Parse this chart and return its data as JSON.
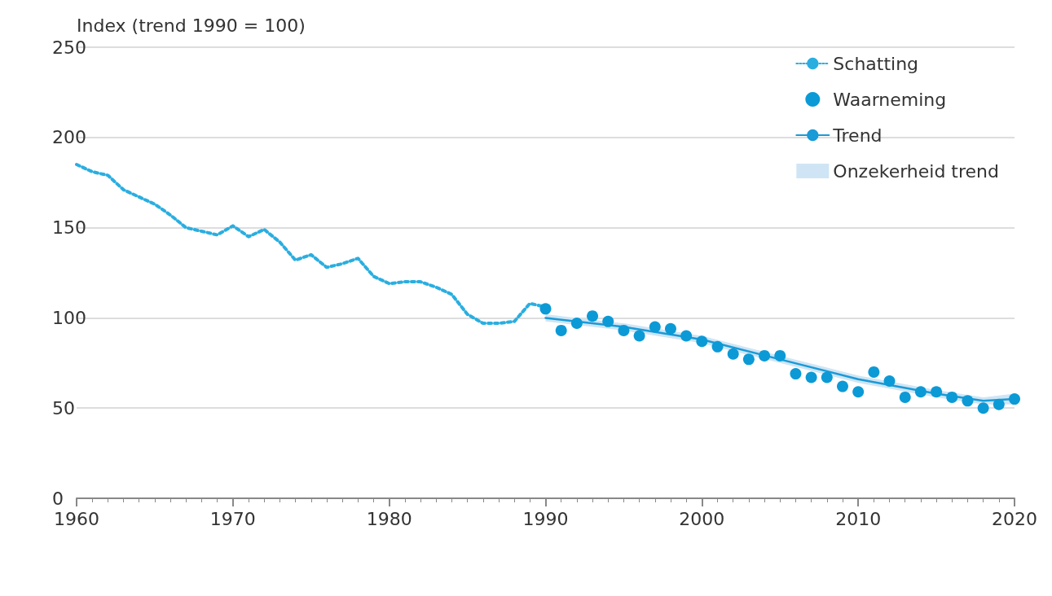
{
  "chart_data": {
    "type": "line",
    "ylabel": "Index (trend 1990 = 100)",
    "xlim": [
      1960,
      2020
    ],
    "xticks": [
      1960,
      1970,
      1980,
      1990,
      2000,
      2010,
      2020
    ],
    "ylim": [
      0,
      250
    ],
    "yticks": [
      0,
      50,
      100,
      150,
      200,
      250
    ],
    "grid": "y",
    "legend": "top right",
    "series": [
      {
        "name": "Schatting",
        "type": "line",
        "line_style": "dotted",
        "marker": "none",
        "color": "#2aaee0",
        "x": [
          1960,
          1961,
          1962,
          1963,
          1964,
          1965,
          1966,
          1967,
          1968,
          1969,
          1970,
          1971,
          1972,
          1973,
          1974,
          1975,
          1976,
          1977,
          1978,
          1979,
          1980,
          1981,
          1982,
          1983,
          1984,
          1985,
          1986,
          1987,
          1988,
          1989,
          1990
        ],
        "values": [
          185,
          181,
          179,
          171,
          167,
          163,
          157,
          150,
          148,
          146,
          151,
          145,
          149,
          142,
          132,
          135,
          128,
          130,
          133,
          123,
          119,
          120,
          120,
          117,
          113,
          102,
          97,
          97,
          98,
          108,
          106
        ]
      },
      {
        "name": "Waarneming",
        "type": "scatter",
        "marker": "circle",
        "color": "#0b9ad6",
        "x": [
          1990,
          1991,
          1992,
          1993,
          1994,
          1995,
          1996,
          1997,
          1998,
          1999,
          2000,
          2001,
          2002,
          2003,
          2004,
          2005,
          2006,
          2007,
          2008,
          2009,
          2010,
          2011,
          2012,
          2013,
          2014,
          2015,
          2016,
          2017,
          2018,
          2019,
          2020
        ],
        "values": [
          105,
          93,
          97,
          101,
          98,
          93,
          90,
          95,
          94,
          90,
          87,
          84,
          80,
          77,
          79,
          79,
          69,
          67,
          67,
          62,
          59,
          70,
          65,
          56,
          59,
          59,
          56,
          54,
          50,
          52,
          55
        ]
      },
      {
        "name": "Trend",
        "type": "line",
        "line_style": "solid",
        "marker": "none",
        "color": "#1a9ad6",
        "x": [
          1990,
          1995,
          2000,
          2005,
          2010,
          2015,
          2018,
          2020
        ],
        "values": [
          100,
          95,
          88,
          77,
          66,
          58,
          54,
          55
        ],
        "lower": [
          98,
          93,
          86,
          75,
          64,
          56,
          52,
          52
        ],
        "upper": [
          102,
          97,
          90,
          79,
          68,
          60,
          56,
          58
        ]
      },
      {
        "name": "Onzekerheid trend",
        "type": "area",
        "color": "#cfe5f5"
      }
    ]
  }
}
